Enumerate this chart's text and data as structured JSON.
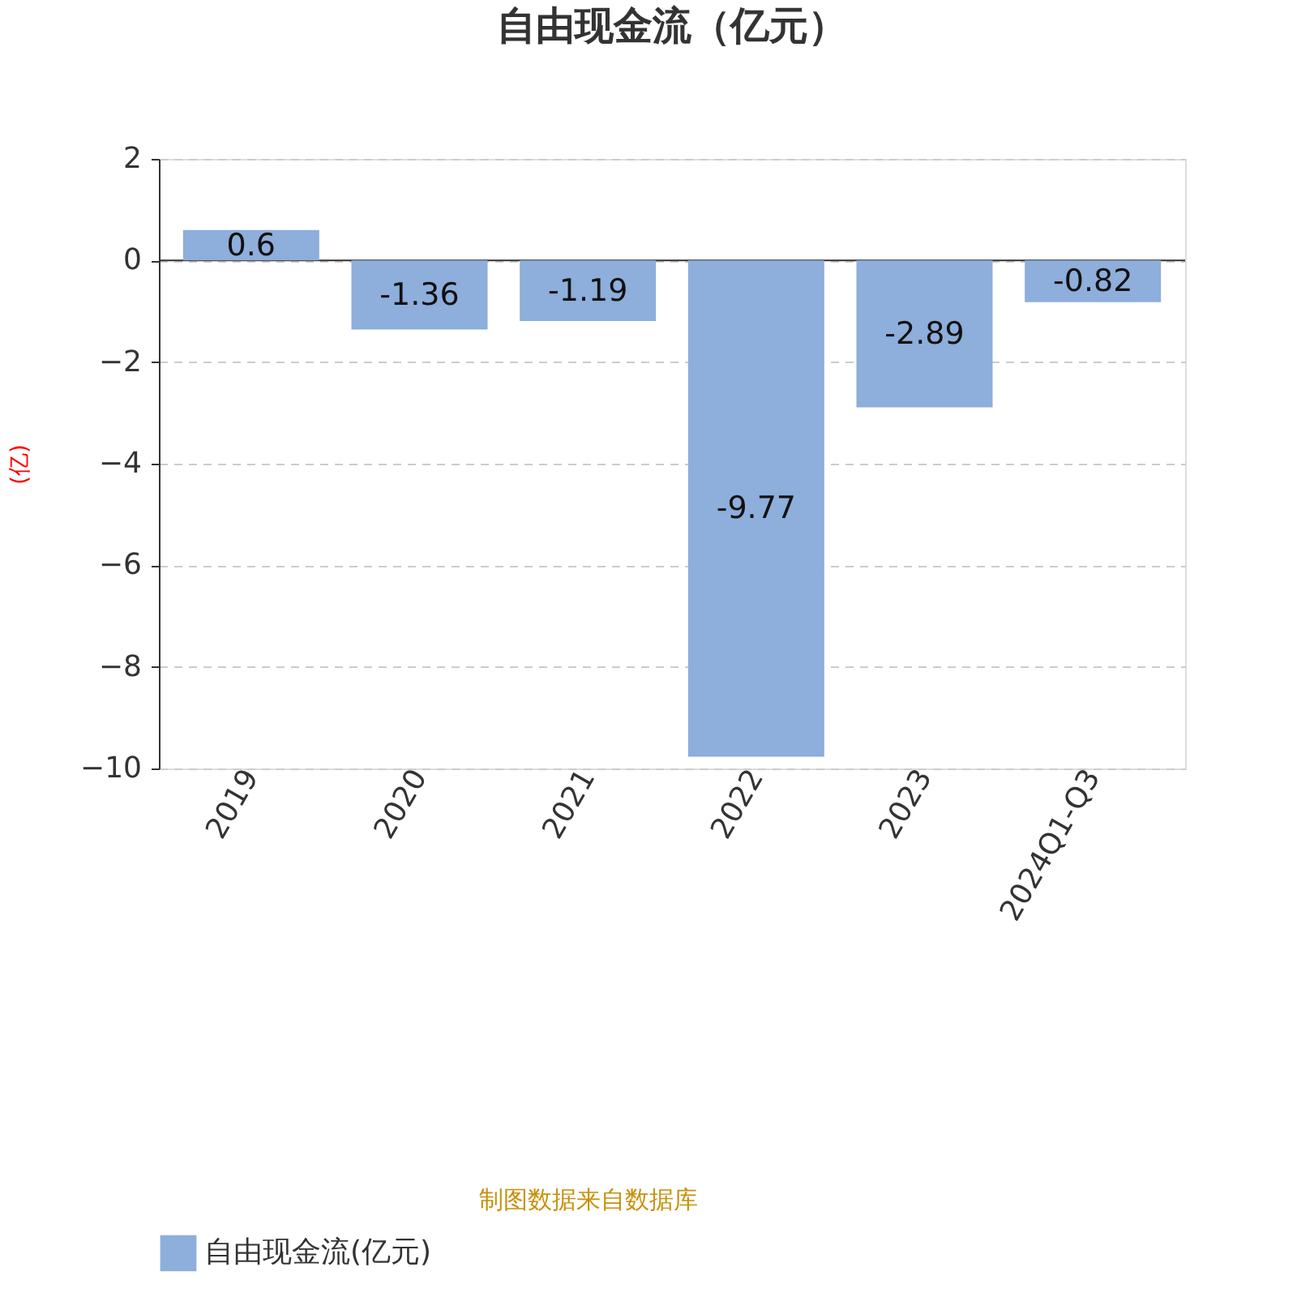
{
  "chart_data": {
    "type": "bar",
    "title": "自由现金流（亿元）",
    "ylabel": "(亿)",
    "categories": [
      "2019",
      "2020",
      "2021",
      "2022",
      "2023",
      "2024Q1-Q3"
    ],
    "series": [
      {
        "name": "自由现金流(亿元)",
        "color": "#8eaedb",
        "values": [
          0.6,
          -1.36,
          -1.19,
          -9.77,
          -2.89,
          -0.82
        ]
      }
    ],
    "ylim": [
      -10,
      2
    ],
    "yticks": [
      -10,
      -8,
      -6,
      -4,
      -2,
      0,
      2
    ],
    "grid": "y",
    "data_labels": true,
    "legend": "bottom",
    "annotations": [
      "制图数据来自数据库"
    ]
  }
}
